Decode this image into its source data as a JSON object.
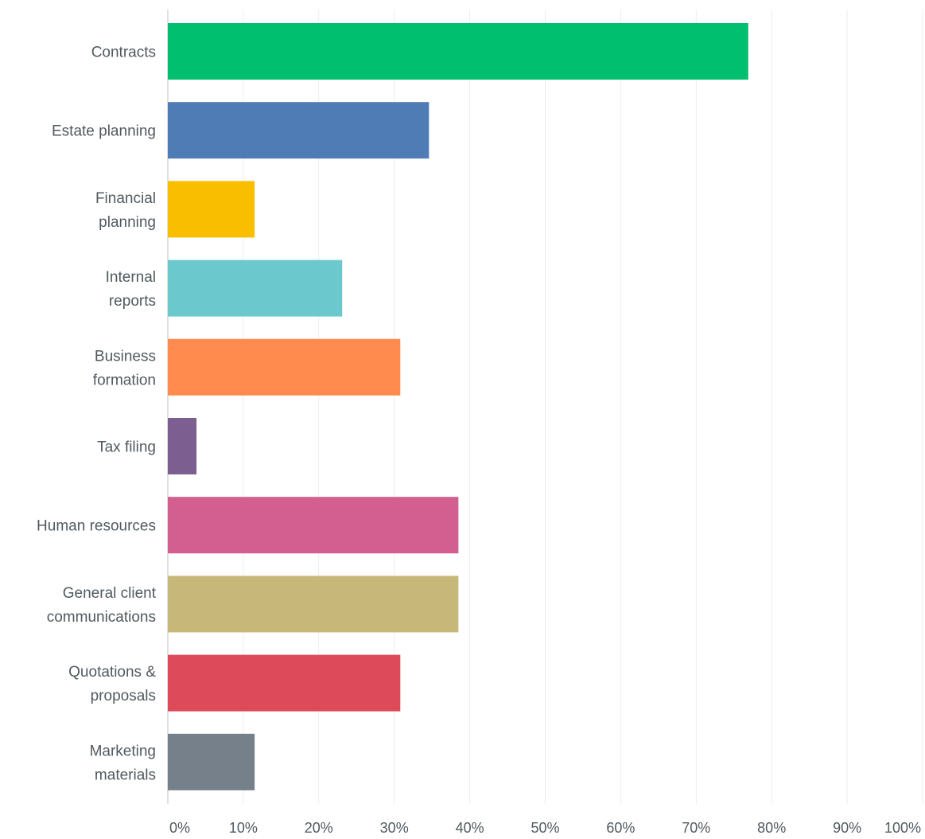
{
  "chart_data": {
    "type": "bar",
    "orientation": "horizontal",
    "categories": [
      [
        "Contracts"
      ],
      [
        "Estate planning"
      ],
      [
        "Financial",
        "planning"
      ],
      [
        "Internal",
        "reports"
      ],
      [
        "Business",
        "formation"
      ],
      [
        "Tax filing"
      ],
      [
        "Human resources"
      ],
      [
        "General client",
        "communications"
      ],
      [
        "Quotations &",
        "proposals"
      ],
      [
        "Marketing",
        "materials"
      ]
    ],
    "values": [
      76.9,
      34.6,
      11.5,
      23.1,
      30.8,
      3.8,
      38.5,
      38.5,
      30.8,
      11.5
    ],
    "colors": [
      "#00bf6f",
      "#507cb6",
      "#f9be00",
      "#6bc8cd",
      "#ff8b4f",
      "#7d5e90",
      "#d25f90",
      "#c7b879",
      "#dd4b5a",
      "#76808a"
    ],
    "x_ticks": [
      "0%",
      "10%",
      "20%",
      "30%",
      "40%",
      "50%",
      "60%",
      "70%",
      "80%",
      "90%",
      "100%"
    ],
    "xlim": [
      0,
      100
    ],
    "grid": true,
    "legend": "none",
    "title": "",
    "xlabel": "",
    "ylabel": ""
  }
}
